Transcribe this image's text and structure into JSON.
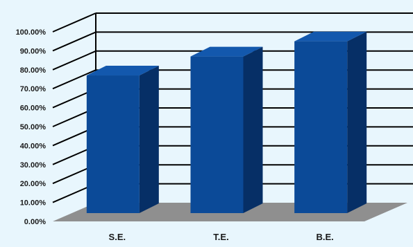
{
  "chart_data": {
    "type": "bar",
    "title": "",
    "xlabel": "",
    "ylabel": "",
    "categories": [
      "S.E.",
      "T.E.",
      "B.E."
    ],
    "values": [
      77,
      87,
      95
    ],
    "y_unit": "%",
    "ylim": [
      0,
      100
    ],
    "y_ticks": [
      "0.00%",
      "10.00%",
      "20.00%",
      "30.00%",
      "40.00%",
      "50.00%",
      "60.00%",
      "70.00%",
      "80.00%",
      "90.00%",
      "100.00%"
    ],
    "grid": true,
    "legend": "none",
    "style": "3d",
    "colors": {
      "bar_front": "#0b4a98",
      "bar_side": "#062f66",
      "bar_top": "#1358ad",
      "floor": "#8f8f8f",
      "background": "#e8f6fd",
      "grid": "#000000"
    }
  }
}
